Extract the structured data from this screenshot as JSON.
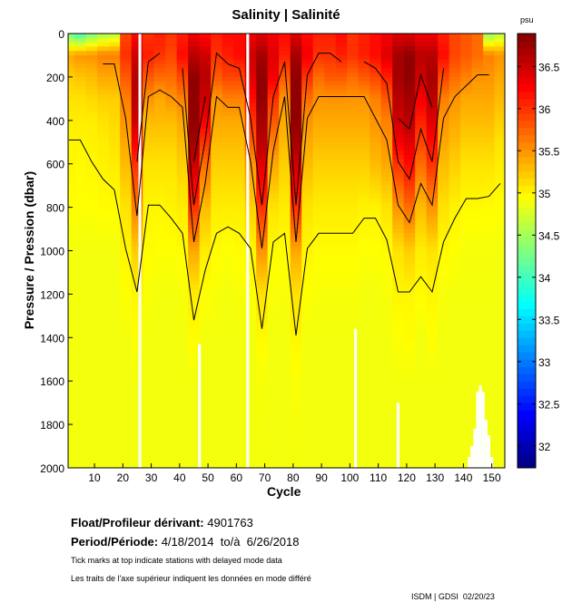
{
  "chart_data": {
    "type": "heatmap",
    "title": "Salinity | Salinité",
    "xlabel": "Cycle",
    "ylabel": "Pressure / Pression (dbar)",
    "xlim": [
      0.7,
      154.6
    ],
    "ylim": [
      0,
      2000
    ],
    "xticks": [
      10,
      20,
      30,
      40,
      50,
      60,
      70,
      80,
      90,
      100,
      110,
      120,
      130,
      140,
      150
    ],
    "yticks": [
      0,
      200,
      400,
      600,
      800,
      1000,
      1200,
      1400,
      1600,
      1800,
      2000
    ],
    "colorbar": {
      "unit": "psu",
      "range": [
        31.74,
        36.89
      ],
      "ticks": [
        32,
        32.5,
        33,
        33.5,
        34,
        34.5,
        35,
        35.5,
        36,
        36.5
      ]
    },
    "contour_levels": [
      35,
      35.5,
      36,
      36.5
    ],
    "column_width_cycles": 4,
    "pressure_levels": [
      0,
      100,
      200,
      300,
      400,
      500,
      600,
      800,
      1000,
      1200,
      1400,
      1600,
      2000
    ],
    "profiles": [
      {
        "cycle": 1,
        "values": [
          34.2,
          35.4,
          35.2,
          35.1,
          35.05,
          35.0,
          35.0,
          34.95,
          34.9,
          34.9,
          34.9,
          34.9,
          34.9
        ]
      },
      {
        "cycle": 5,
        "values": [
          34.0,
          35.5,
          35.25,
          35.1,
          35.05,
          35.0,
          34.98,
          34.95,
          34.9,
          34.9,
          34.9,
          34.9,
          34.9
        ]
      },
      {
        "cycle": 9,
        "values": [
          34.3,
          35.5,
          35.3,
          35.15,
          35.05,
          35.02,
          35.0,
          34.95,
          34.9,
          34.9,
          34.9,
          34.9,
          34.9
        ]
      },
      {
        "cycle": 13,
        "values": [
          34.5,
          35.6,
          35.4,
          35.2,
          35.1,
          35.05,
          35.02,
          34.97,
          34.9,
          34.9,
          34.9,
          34.9,
          34.9
        ]
      },
      {
        "cycle": 17,
        "values": [
          34.6,
          35.6,
          35.4,
          35.2,
          35.15,
          35.1,
          35.05,
          34.97,
          34.9,
          34.9,
          34.9,
          34.9,
          34.9
        ]
      },
      {
        "cycle": 21,
        "values": [
          35.9,
          36.0,
          35.8,
          35.6,
          35.5,
          35.4,
          35.3,
          35.1,
          35.0,
          34.95,
          34.9,
          34.9,
          34.9
        ]
      },
      {
        "cycle": 25,
        "values": [
          36.2,
          36.5,
          36.6,
          36.6,
          36.5,
          36.3,
          36.0,
          35.6,
          35.2,
          35.0,
          34.95,
          34.9,
          34.9
        ]
      },
      {
        "cycle": 29,
        "values": [
          36.0,
          36.1,
          35.8,
          35.5,
          35.3,
          35.2,
          35.1,
          35.0,
          34.97,
          34.93,
          34.9,
          34.9,
          34.9
        ]
      },
      {
        "cycle": 33,
        "values": [
          36.1,
          36.0,
          35.7,
          35.4,
          35.3,
          35.2,
          35.1,
          35.0,
          34.95,
          34.9,
          34.9,
          34.9,
          34.9
        ]
      },
      {
        "cycle": 37,
        "values": [
          36.0,
          35.9,
          35.7,
          35.5,
          35.3,
          35.2,
          35.1,
          35.02,
          34.95,
          34.9,
          34.9,
          34.9,
          34.9
        ]
      },
      {
        "cycle": 41,
        "values": [
          36.1,
          36.2,
          35.9,
          35.6,
          35.4,
          35.3,
          35.2,
          35.05,
          34.97,
          34.92,
          34.9,
          34.9,
          34.9
        ]
      },
      {
        "cycle": 45,
        "values": [
          36.3,
          36.6,
          36.8,
          36.8,
          36.8,
          36.7,
          36.5,
          36.0,
          35.4,
          35.05,
          34.97,
          34.9,
          34.9
        ]
      },
      {
        "cycle": 49,
        "values": [
          36.2,
          36.5,
          36.6,
          36.5,
          36.3,
          36.0,
          35.7,
          35.3,
          35.05,
          34.95,
          34.9,
          34.9,
          34.9
        ]
      },
      {
        "cycle": 53,
        "values": [
          36.1,
          36.0,
          35.8,
          35.5,
          35.4,
          35.3,
          35.2,
          35.05,
          34.97,
          34.92,
          34.9,
          34.9,
          34.9
        ]
      },
      {
        "cycle": 57,
        "values": [
          36.2,
          36.1,
          35.9,
          35.6,
          35.4,
          35.3,
          35.2,
          35.05,
          34.95,
          34.9,
          34.9,
          34.9,
          34.9
        ]
      },
      {
        "cycle": 61,
        "values": [
          36.2,
          36.2,
          35.9,
          35.6,
          35.4,
          35.3,
          35.2,
          35.05,
          34.97,
          34.92,
          34.9,
          34.9,
          34.9
        ]
      },
      {
        "cycle": 65,
        "values": [
          36.3,
          36.5,
          36.4,
          36.2,
          36.0,
          35.8,
          35.5,
          35.2,
          35.0,
          34.95,
          34.9,
          34.9,
          34.9
        ]
      },
      {
        "cycle": 69,
        "values": [
          36.4,
          36.7,
          36.8,
          36.8,
          36.7,
          36.6,
          36.4,
          36.0,
          35.5,
          35.1,
          34.98,
          34.92,
          34.9
        ]
      },
      {
        "cycle": 73,
        "values": [
          36.3,
          36.4,
          36.3,
          36.0,
          35.8,
          35.6,
          35.4,
          35.1,
          34.98,
          34.93,
          34.9,
          34.9,
          34.9
        ]
      },
      {
        "cycle": 77,
        "values": [
          36.2,
          36.1,
          35.8,
          35.5,
          35.4,
          35.3,
          35.2,
          35.05,
          34.97,
          34.92,
          34.9,
          34.9,
          34.9
        ]
      },
      {
        "cycle": 81,
        "values": [
          36.4,
          36.7,
          36.8,
          36.8,
          36.8,
          36.7,
          36.5,
          36.0,
          35.4,
          35.1,
          35.0,
          34.93,
          34.9
        ]
      },
      {
        "cycle": 85,
        "values": [
          36.2,
          36.3,
          36.0,
          35.7,
          35.5,
          35.4,
          35.3,
          35.1,
          35.0,
          34.95,
          34.9,
          34.9,
          34.9
        ]
      },
      {
        "cycle": 89,
        "values": [
          36.1,
          36.0,
          35.7,
          35.5,
          35.4,
          35.3,
          35.2,
          35.05,
          34.97,
          34.92,
          34.9,
          34.9,
          34.9
        ]
      },
      {
        "cycle": 93,
        "values": [
          36.1,
          36.0,
          35.8,
          35.5,
          35.4,
          35.3,
          35.2,
          35.05,
          34.97,
          34.92,
          34.9,
          34.9,
          34.9
        ]
      },
      {
        "cycle": 97,
        "values": [
          36.2,
          36.1,
          35.8,
          35.5,
          35.4,
          35.3,
          35.2,
          35.05,
          34.97,
          34.92,
          34.9,
          34.9,
          34.9
        ]
      },
      {
        "cycle": 101,
        "values": [
          36.0,
          36.0,
          35.7,
          35.5,
          35.4,
          35.3,
          35.2,
          35.05,
          34.97,
          34.92,
          34.9,
          34.9,
          34.9
        ]
      },
      {
        "cycle": 105,
        "values": [
          36.1,
          36.1,
          35.8,
          35.5,
          35.4,
          35.3,
          35.2,
          35.02,
          34.95,
          34.9,
          34.9,
          34.9,
          34.9
        ]
      },
      {
        "cycle": 109,
        "values": [
          36.2,
          36.2,
          35.9,
          35.6,
          35.5,
          35.4,
          35.3,
          35.02,
          34.95,
          34.9,
          34.9,
          34.9,
          34.9
        ]
      },
      {
        "cycle": 113,
        "values": [
          36.3,
          36.4,
          36.1,
          35.8,
          35.6,
          35.5,
          35.4,
          35.1,
          34.97,
          34.92,
          34.9,
          34.9,
          34.9
        ]
      },
      {
        "cycle": 117,
        "values": [
          36.4,
          36.7,
          36.7,
          36.6,
          36.5,
          36.3,
          36.0,
          35.5,
          35.1,
          35.0,
          34.95,
          34.9,
          34.9
        ]
      },
      {
        "cycle": 121,
        "values": [
          36.4,
          36.8,
          36.8,
          36.7,
          36.6,
          36.4,
          36.2,
          35.7,
          35.2,
          35.0,
          34.97,
          34.9,
          34.9
        ]
      },
      {
        "cycle": 125,
        "values": [
          36.3,
          36.6,
          36.5,
          36.3,
          36.1,
          35.9,
          35.7,
          35.3,
          35.05,
          34.97,
          34.9,
          34.9,
          34.9
        ]
      },
      {
        "cycle": 129,
        "values": [
          36.3,
          36.6,
          36.7,
          36.6,
          36.4,
          36.2,
          36.0,
          35.5,
          35.1,
          35.0,
          34.95,
          34.9,
          34.9
        ]
      },
      {
        "cycle": 133,
        "values": [
          36.1,
          36.2,
          35.9,
          35.6,
          35.5,
          35.4,
          35.3,
          35.1,
          34.98,
          34.92,
          34.9,
          34.9,
          34.9
        ]
      },
      {
        "cycle": 137,
        "values": [
          35.9,
          35.9,
          35.7,
          35.5,
          35.4,
          35.3,
          35.2,
          35.02,
          34.95,
          34.9,
          34.9,
          34.9,
          34.9
        ]
      },
      {
        "cycle": 141,
        "values": [
          35.8,
          35.8,
          35.6,
          35.4,
          35.3,
          35.2,
          35.1,
          34.98,
          34.92,
          34.9,
          34.9,
          34.9,
          34.9
        ]
      },
      {
        "cycle": 145,
        "values": [
          35.7,
          35.7,
          35.5,
          35.4,
          35.3,
          35.2,
          35.1,
          34.98,
          34.92,
          34.9,
          34.9,
          34.9,
          34.9
        ]
      },
      {
        "cycle": 149,
        "values": [
          34.4,
          35.6,
          35.5,
          35.4,
          35.3,
          35.2,
          35.1,
          34.97,
          34.92,
          34.9,
          34.9,
          34.9,
          34.9
        ]
      },
      {
        "cycle": 153,
        "values": [
          34.6,
          35.5,
          35.4,
          35.3,
          35.2,
          35.1,
          35.05,
          34.95,
          34.9,
          34.9,
          34.9,
          34.9,
          34.9
        ]
      }
    ],
    "missing": [
      {
        "cycle": 26,
        "from": 0,
        "to": 2000
      },
      {
        "cycle": 47,
        "from": 1430,
        "to": 2000
      },
      {
        "cycle": 64,
        "from": 0,
        "to": 2000
      },
      {
        "cycle": 102,
        "from": 1360,
        "to": 2000
      },
      {
        "cycle": 117,
        "from": 1700,
        "to": 2000
      },
      {
        "cycle": 142,
        "from": 1950,
        "to": 2000
      },
      {
        "cycle": 143,
        "from": 1900,
        "to": 2000
      },
      {
        "cycle": 144,
        "from": 1820,
        "to": 2000
      },
      {
        "cycle": 145,
        "from": 1650,
        "to": 2000
      },
      {
        "cycle": 146,
        "from": 1620,
        "to": 2000
      },
      {
        "cycle": 147,
        "from": 1650,
        "to": 2000
      },
      {
        "cycle": 148,
        "from": 1780,
        "to": 2000
      },
      {
        "cycle": 149,
        "from": 1850,
        "to": 2000
      },
      {
        "cycle": 150,
        "from": 1950,
        "to": 2000
      }
    ]
  },
  "info": {
    "float_label": "Float/Profileur dérivant:",
    "float_id": "4901763",
    "period_label": "Period/Période:",
    "period_value": "4/18/2014  to/à  6/26/2018",
    "note_en": "Tick marks at top indicate stations with delayed mode data",
    "note_fr": "Les traits de l'axe supérieur indiquent les données en mode différé",
    "credit": "ISDM | GDSI  02/20/23"
  }
}
